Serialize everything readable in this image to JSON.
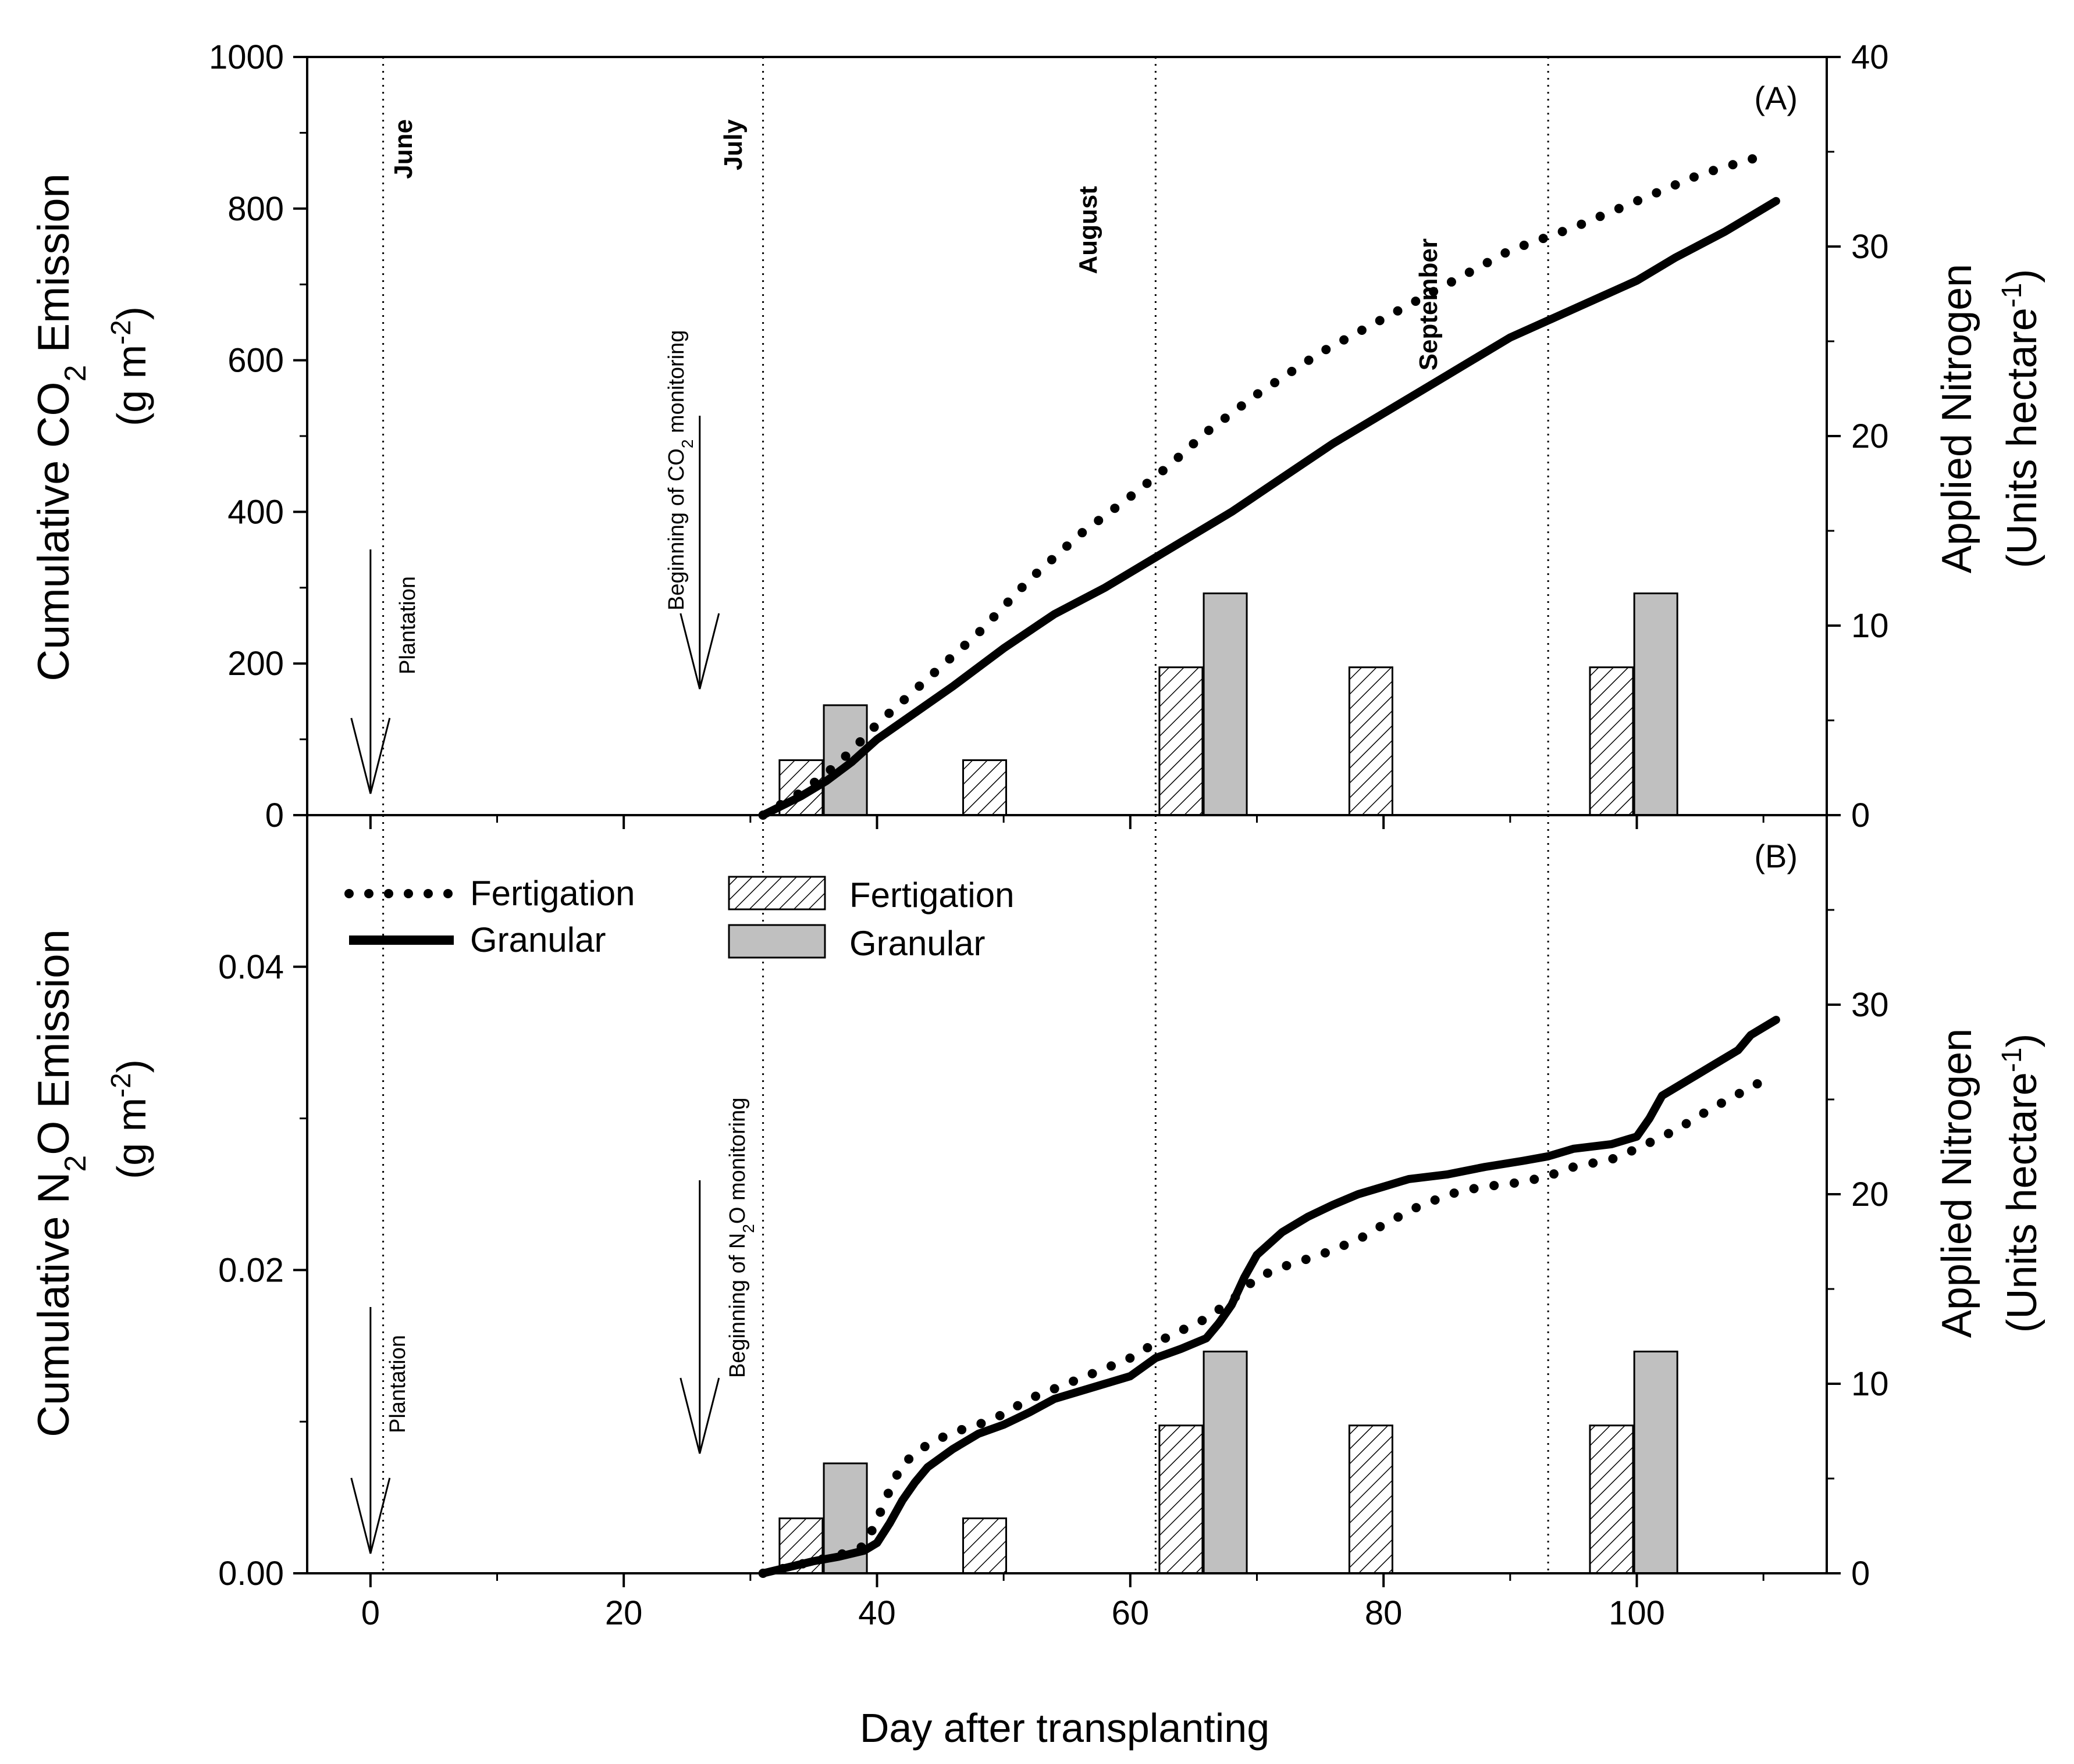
{
  "chart_data": {
    "type": "line",
    "x_label": "Day after transplanting",
    "x_range": [
      -5,
      115
    ],
    "x_ticks": [
      0,
      20,
      40,
      60,
      80,
      100
    ],
    "x_tick_labels": [
      "0",
      "20",
      "40",
      "60",
      "80",
      "100"
    ],
    "month_markers": [
      {
        "day": 1,
        "label": "June"
      },
      {
        "day": 31,
        "label": "July"
      },
      {
        "day": 62,
        "label": "August"
      },
      {
        "day": 93,
        "label": "September"
      }
    ],
    "legend": {
      "lines": [
        {
          "name": "Fertigation",
          "style": "dotted"
        },
        {
          "name": "Granular",
          "style": "solid"
        }
      ],
      "bars": [
        {
          "name": "Fertigation",
          "style": "hatched"
        },
        {
          "name": "Granular",
          "style": "gray"
        }
      ]
    },
    "panels": [
      {
        "id": "A",
        "panel_label": "(A)",
        "ylabel_prefix": "Cumulative CO",
        "ylabel_sub": "2",
        "ylabel_suffix": " Emission",
        "yunit_base": "(g m",
        "yunit_sup": "-2",
        "yunit_end": ")",
        "ylim": [
          0,
          1000
        ],
        "yticks": [
          0,
          200,
          400,
          600,
          800,
          1000
        ],
        "ytick_labels": [
          "0",
          "200",
          "400",
          "600",
          "800",
          "1000"
        ],
        "y2lim": [
          0,
          40
        ],
        "y2ticks": [
          0,
          10,
          20,
          30,
          40
        ],
        "y2tick_labels": [
          "0",
          "10",
          "20",
          "30",
          "40"
        ],
        "y2label_line1": "Applied Nitrogen",
        "y2label_line2_base": "(Units hectare",
        "y2label_line2_sup": "-1",
        "y2label_line2_end": ")",
        "plantation_text": "Plantation",
        "monitoring_prefix": "Beginning of CO",
        "monitoring_sub": "2",
        "monitoring_suffix": " monitoring",
        "series": [
          {
            "name": "Fertigation",
            "style": "dotted",
            "x": [
              31,
              34,
              36,
              38,
              40,
              42,
              45,
              48,
              52,
              56,
              60,
              63,
              66,
              70,
              75,
              80,
              85,
              90,
              95,
              100,
              105,
              110
            ],
            "y": [
              0,
              30,
              55,
              85,
              120,
              150,
              195,
              240,
              310,
              370,
              420,
              460,
              505,
              555,
              610,
              655,
              700,
              745,
              775,
              810,
              845,
              870
            ]
          },
          {
            "name": "Granular",
            "style": "solid",
            "x": [
              31,
              34,
              36,
              38,
              40,
              43,
              46,
              50,
              54,
              58,
              62,
              65,
              68,
              72,
              76,
              80,
              85,
              90,
              94,
              98,
              100,
              103,
              107,
              111
            ],
            "y": [
              0,
              25,
              45,
              70,
              100,
              135,
              170,
              220,
              265,
              300,
              340,
              370,
              400,
              445,
              490,
              530,
              580,
              630,
              660,
              690,
              705,
              735,
              770,
              810
            ]
          }
        ],
        "bars": [
          {
            "day": 34,
            "type": "Fertigation",
            "value": 2.9
          },
          {
            "day": 37.5,
            "type": "Granular",
            "value": 5.8
          },
          {
            "day": 48.5,
            "type": "Fertigation",
            "value": 2.9
          },
          {
            "day": 64,
            "type": "Fertigation",
            "value": 7.8
          },
          {
            "day": 67.5,
            "type": "Granular",
            "value": 11.7
          },
          {
            "day": 79,
            "type": "Fertigation",
            "value": 7.8
          },
          {
            "day": 98,
            "type": "Fertigation",
            "value": 7.8
          },
          {
            "day": 101.5,
            "type": "Granular",
            "value": 11.7
          }
        ]
      },
      {
        "id": "B",
        "panel_label": "(B)",
        "ylabel_prefix": "Cumulative N",
        "ylabel_sub": "2",
        "ylabel_suffix": "O Emission",
        "yunit_base": "(g m",
        "yunit_sup": "-2",
        "yunit_end": ")",
        "ylim": [
          0,
          0.05
        ],
        "yticks": [
          0,
          0.02,
          0.04
        ],
        "ytick_labels": [
          "0.00",
          "0.02",
          "0.04"
        ],
        "y2lim": [
          0,
          40
        ],
        "y2ticks": [
          0,
          10,
          20,
          30
        ],
        "y2tick_labels": [
          "0",
          "10",
          "20",
          "30"
        ],
        "y2label_line1": "Applied Nitrogen",
        "y2label_line2_base": "(Units hectare",
        "y2label_line2_sup": "-1",
        "y2label_line2_end": ")",
        "plantation_text": "Plantation",
        "monitoring_prefix": "Beginning of N",
        "monitoring_sub": "2",
        "monitoring_suffix": "O monitoring",
        "series": [
          {
            "name": "Fertigation",
            "style": "dotted",
            "x": [
              31,
              33,
              35,
              37,
              39,
              40,
              41,
              42,
              44,
              46,
              48,
              50,
              52,
              55,
              58,
              60,
              62,
              64,
              66,
              68,
              70,
              72,
              75,
              78,
              80,
              83,
              86,
              88,
              91,
              93,
              95,
              98,
              100,
              103,
              106,
              110
            ],
            "y": [
              0,
              0.0004,
              0.0008,
              0.0012,
              0.0018,
              0.0035,
              0.0055,
              0.0072,
              0.0085,
              0.0093,
              0.0098,
              0.0105,
              0.0115,
              0.0125,
              0.0135,
              0.0142,
              0.0152,
              0.016,
              0.0168,
              0.018,
              0.0195,
              0.0202,
              0.021,
              0.022,
              0.023,
              0.0243,
              0.0252,
              0.0255,
              0.0258,
              0.0262,
              0.0268,
              0.0273,
              0.028,
              0.0292,
              0.0307,
              0.0325
            ]
          },
          {
            "name": "Granular",
            "style": "solid",
            "x": [
              31,
              33,
              35,
              37,
              39,
              40,
              41,
              42,
              43,
              44,
              46,
              48,
              50,
              52,
              54,
              56,
              58,
              60,
              62,
              64,
              66,
              67,
              68,
              69,
              70,
              72,
              74,
              76,
              78,
              80,
              82,
              85,
              88,
              91,
              93,
              95,
              98,
              100,
              101,
              102,
              104,
              106,
              108,
              109,
              111
            ],
            "y": [
              0,
              0.0004,
              0.0008,
              0.0011,
              0.0015,
              0.002,
              0.0033,
              0.0048,
              0.006,
              0.007,
              0.0082,
              0.0092,
              0.0098,
              0.0106,
              0.0115,
              0.012,
              0.0125,
              0.013,
              0.0142,
              0.0148,
              0.0155,
              0.0165,
              0.0177,
              0.0195,
              0.021,
              0.0225,
              0.0235,
              0.0243,
              0.025,
              0.0255,
              0.026,
              0.0263,
              0.0268,
              0.0272,
              0.0275,
              0.028,
              0.0283,
              0.0288,
              0.03,
              0.0315,
              0.0325,
              0.0335,
              0.0345,
              0.0355,
              0.0365
            ]
          }
        ],
        "bars": [
          {
            "day": 34,
            "type": "Fertigation",
            "value": 2.9
          },
          {
            "day": 37.5,
            "type": "Granular",
            "value": 5.8
          },
          {
            "day": 48.5,
            "type": "Fertigation",
            "value": 2.9
          },
          {
            "day": 64,
            "type": "Fertigation",
            "value": 7.8
          },
          {
            "day": 67.5,
            "type": "Granular",
            "value": 11.7
          },
          {
            "day": 79,
            "type": "Fertigation",
            "value": 7.8
          },
          {
            "day": 98,
            "type": "Fertigation",
            "value": 7.8
          },
          {
            "day": 101.5,
            "type": "Granular",
            "value": 11.7
          }
        ]
      }
    ]
  }
}
